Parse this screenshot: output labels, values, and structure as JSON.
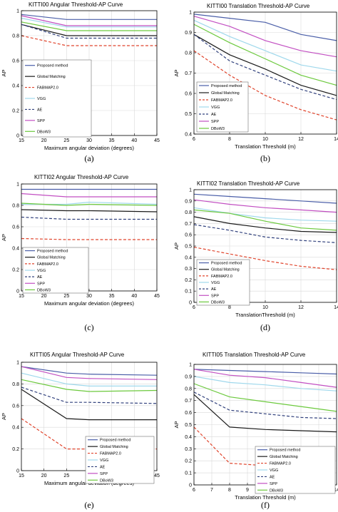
{
  "colors": {
    "Proposed method": "#4a5ea8",
    "Global Matching": "#1a1a1a",
    "FABMAP2.0": "#e0442c",
    "VGG": "#9fd8ec",
    "AE": "#31417d",
    "SPP": "#c24fc2",
    "DBoW3": "#6cc93d"
  },
  "chart_data": [
    {
      "type": "line",
      "caption": "(a)",
      "title": "KITTI00 Angular Threshold-AP Curve",
      "xlabel": "Maximum angular deviation (degrees)",
      "ylabel": "AP",
      "x": [
        15,
        25,
        45
      ],
      "xlim": [
        15,
        45
      ],
      "ylim": [
        0,
        1
      ],
      "xticks": [
        15,
        20,
        25,
        30,
        35,
        40,
        45
      ],
      "yticks": [
        0,
        0.2,
        0.4,
        0.6,
        0.8,
        1
      ],
      "grid": true,
      "legend_position": "bottom-left",
      "series": [
        {
          "name": "Proposed method",
          "values": [
            0.97,
            0.93,
            0.93
          ]
        },
        {
          "name": "Global Matching",
          "values": [
            0.89,
            0.8,
            0.8
          ]
        },
        {
          "name": "FABMAP2.0",
          "values": [
            0.8,
            0.72,
            0.72
          ]
        },
        {
          "name": "VGG",
          "values": [
            0.94,
            0.87,
            0.87
          ]
        },
        {
          "name": "AE",
          "values": [
            0.89,
            0.78,
            0.78
          ]
        },
        {
          "name": "SPP",
          "values": [
            0.96,
            0.88,
            0.88
          ]
        },
        {
          "name": "DBoW3",
          "values": [
            0.91,
            0.84,
            0.84
          ]
        }
      ]
    },
    {
      "type": "line",
      "caption": "(b)",
      "title": "KITTI00 Translation Threshold-AP Curve",
      "xlabel": "Translation Threshold (m)",
      "ylabel": "AP",
      "x": [
        6,
        8,
        10,
        12,
        14
      ],
      "xlim": [
        6,
        14
      ],
      "ylim": [
        0.4,
        1
      ],
      "xticks": [
        6,
        8,
        10,
        12,
        14
      ],
      "yticks": [
        0.4,
        0.5,
        0.6,
        0.7,
        0.8,
        0.9,
        1
      ],
      "grid": true,
      "legend_position": "bottom-left",
      "series": [
        {
          "name": "Proposed method",
          "values": [
            0.99,
            0.97,
            0.95,
            0.89,
            0.86
          ]
        },
        {
          "name": "Global Matching",
          "values": [
            0.89,
            0.79,
            0.72,
            0.64,
            0.59
          ]
        },
        {
          "name": "FABMAP2.0",
          "values": [
            0.81,
            0.69,
            0.59,
            0.52,
            0.47
          ]
        },
        {
          "name": "VGG",
          "values": [
            0.96,
            0.88,
            0.81,
            0.74,
            0.71
          ]
        },
        {
          "name": "AE",
          "values": [
            0.89,
            0.76,
            0.69,
            0.62,
            0.57
          ]
        },
        {
          "name": "SPP",
          "values": [
            0.98,
            0.93,
            0.86,
            0.81,
            0.78
          ]
        },
        {
          "name": "DBoW3",
          "values": [
            0.94,
            0.85,
            0.77,
            0.69,
            0.64
          ]
        }
      ]
    },
    {
      "type": "line",
      "caption": "(c)",
      "title": "KITTI02 Angular Threshold-AP Curve",
      "xlabel": "Maximum angular deviation (degrees)",
      "ylabel": "AP",
      "x": [
        15,
        25,
        30,
        45
      ],
      "xlim": [
        15,
        45
      ],
      "ylim": [
        0,
        1
      ],
      "xticks": [
        15,
        20,
        25,
        30,
        35,
        40,
        45
      ],
      "yticks": [
        0,
        0.2,
        0.4,
        0.6,
        0.8,
        1
      ],
      "grid": true,
      "legend_position": "bottom-left",
      "series": [
        {
          "name": "Proposed method",
          "values": [
            0.95,
            0.95,
            0.95,
            0.95
          ]
        },
        {
          "name": "Global Matching",
          "values": [
            0.76,
            0.75,
            0.75,
            0.74
          ]
        },
        {
          "name": "FABMAP2.0",
          "values": [
            0.49,
            0.48,
            0.48,
            0.48
          ]
        },
        {
          "name": "VGG",
          "values": [
            0.81,
            0.81,
            0.83,
            0.81
          ]
        },
        {
          "name": "AE",
          "values": [
            0.69,
            0.67,
            0.67,
            0.67
          ]
        },
        {
          "name": "SPP",
          "values": [
            0.91,
            0.88,
            0.88,
            0.88
          ]
        },
        {
          "name": "DBoW3",
          "values": [
            0.82,
            0.8,
            0.81,
            0.8
          ]
        }
      ]
    },
    {
      "type": "line",
      "caption": "(d)",
      "title": "KITTI02 Translation Threshold-AP Curve",
      "xlabel": "TranslationThreshold (m)",
      "ylabel": "AP",
      "x": [
        6,
        8,
        10,
        12,
        14
      ],
      "xlim": [
        6,
        14
      ],
      "ylim": [
        0,
        1
      ],
      "xticks": [
        6,
        8,
        10,
        12,
        14
      ],
      "yticks": [
        0,
        0.1,
        0.2,
        0.3,
        0.4,
        0.5,
        0.6,
        0.7,
        0.8,
        0.9,
        1
      ],
      "grid": true,
      "legend_position": "bottom-left",
      "series": [
        {
          "name": "Proposed method",
          "values": [
            0.96,
            0.94,
            0.92,
            0.9,
            0.88
          ]
        },
        {
          "name": "Global Matching",
          "values": [
            0.76,
            0.7,
            0.66,
            0.63,
            0.62
          ]
        },
        {
          "name": "FABMAP2.0",
          "values": [
            0.49,
            0.43,
            0.37,
            0.32,
            0.29
          ]
        },
        {
          "name": "VGG",
          "values": [
            0.84,
            0.79,
            0.75,
            0.73,
            0.72
          ]
        },
        {
          "name": "AE",
          "values": [
            0.69,
            0.64,
            0.58,
            0.55,
            0.53
          ]
        },
        {
          "name": "SPP",
          "values": [
            0.91,
            0.87,
            0.84,
            0.82,
            0.8
          ]
        },
        {
          "name": "DBoW3",
          "values": [
            0.82,
            0.79,
            0.72,
            0.66,
            0.64
          ]
        }
      ]
    },
    {
      "type": "line",
      "caption": "(e)",
      "title": "KITTI05 Angular Threshold-AP Curve",
      "xlabel": "Maximum angular deviation (degrees)",
      "ylabel": "AP",
      "x": [
        15,
        25,
        30,
        45
      ],
      "xlim": [
        15,
        45
      ],
      "ylim": [
        0,
        1
      ],
      "xticks": [
        15,
        20,
        25,
        30,
        35,
        40,
        45
      ],
      "yticks": [
        0,
        0.2,
        0.4,
        0.6,
        0.8,
        1
      ],
      "grid": true,
      "legend_position": "bottom-right",
      "series": [
        {
          "name": "Proposed method",
          "values": [
            0.96,
            0.9,
            0.89,
            0.88
          ]
        },
        {
          "name": "Global Matching",
          "values": [
            0.75,
            0.48,
            0.47,
            0.47
          ]
        },
        {
          "name": "FABMAP2.0",
          "values": [
            0.48,
            0.2,
            0.2,
            0.2
          ]
        },
        {
          "name": "VGG",
          "values": [
            0.9,
            0.8,
            0.78,
            0.78
          ]
        },
        {
          "name": "AE",
          "values": [
            0.77,
            0.63,
            0.63,
            0.62
          ]
        },
        {
          "name": "SPP",
          "values": [
            0.96,
            0.86,
            0.85,
            0.84
          ]
        },
        {
          "name": "DBoW3",
          "values": [
            0.84,
            0.75,
            0.73,
            0.74
          ]
        }
      ]
    },
    {
      "type": "line",
      "caption": "(f)",
      "title": "KITTI05 Translation Threshold-AP Curve",
      "xlabel": "Translation Threshold (m)",
      "ylabel": "AP",
      "x": [
        6,
        8,
        10,
        12,
        14
      ],
      "xlim": [
        6,
        14
      ],
      "ylim": [
        0,
        1
      ],
      "xticks": [
        6,
        7,
        8,
        9,
        10,
        11,
        12,
        13,
        14
      ],
      "yticks": [
        0,
        0.1,
        0.2,
        0.3,
        0.4,
        0.5,
        0.6,
        0.7,
        0.8,
        0.9,
        1
      ],
      "grid": true,
      "legend_position": "bottom-right",
      "series": [
        {
          "name": "Proposed method",
          "values": [
            0.96,
            0.95,
            0.94,
            0.93,
            0.92
          ]
        },
        {
          "name": "Global Matching",
          "values": [
            0.75,
            0.48,
            0.46,
            0.45,
            0.44
          ]
        },
        {
          "name": "FABMAP2.0",
          "values": [
            0.48,
            0.18,
            0.16,
            0.15,
            0.14
          ]
        },
        {
          "name": "VGG",
          "values": [
            0.9,
            0.85,
            0.83,
            0.8,
            0.78
          ]
        },
        {
          "name": "AE",
          "values": [
            0.77,
            0.62,
            0.59,
            0.56,
            0.55
          ]
        },
        {
          "name": "SPP",
          "values": [
            0.96,
            0.91,
            0.89,
            0.85,
            0.81
          ]
        },
        {
          "name": "DBoW3",
          "values": [
            0.84,
            0.73,
            0.69,
            0.65,
            0.61
          ]
        }
      ]
    }
  ]
}
